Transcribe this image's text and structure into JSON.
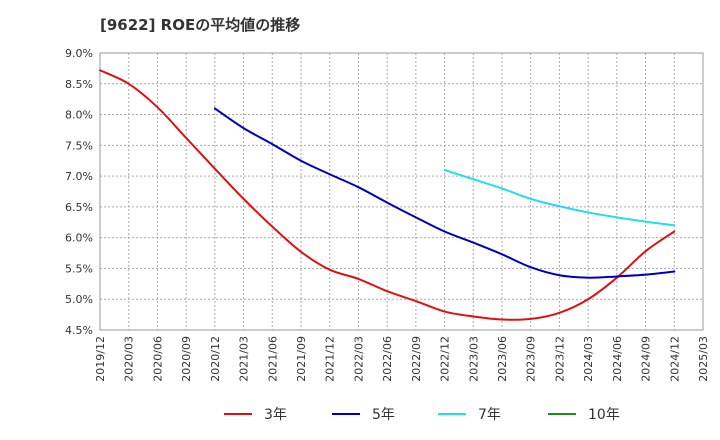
{
  "chart_data": {
    "type": "line",
    "title": "[9622]  ROEの平均値の推移",
    "xlabel": "",
    "ylabel": "",
    "ylim": [
      4.5,
      9.0
    ],
    "yticks": [
      4.5,
      5.0,
      5.5,
      6.0,
      6.5,
      7.0,
      7.5,
      8.0,
      8.5,
      9.0
    ],
    "ytick_labels": [
      "4.5%",
      "5.0%",
      "5.5%",
      "6.0%",
      "6.5%",
      "7.0%",
      "7.5%",
      "8.0%",
      "8.5%",
      "9.0%"
    ],
    "categories": [
      "2019/12",
      "2020/03",
      "2020/06",
      "2020/09",
      "2020/12",
      "2021/03",
      "2021/06",
      "2021/09",
      "2021/12",
      "2022/03",
      "2022/06",
      "2022/09",
      "2022/12",
      "2023/03",
      "2023/06",
      "2023/09",
      "2023/12",
      "2024/03",
      "2024/06",
      "2024/09",
      "2024/12",
      "2025/03"
    ],
    "grid": true,
    "legend_position": "bottom",
    "series": [
      {
        "name": "3年",
        "color": "#dd1111",
        "values": [
          8.72,
          8.5,
          8.12,
          7.62,
          7.12,
          6.63,
          6.18,
          5.77,
          5.48,
          5.33,
          5.13,
          4.97,
          4.8,
          4.72,
          4.67,
          4.68,
          4.78,
          5.0,
          5.35,
          5.78,
          6.1,
          null
        ]
      },
      {
        "name": "5年",
        "color": "#0000bb",
        "values": [
          null,
          null,
          null,
          null,
          8.1,
          7.78,
          7.52,
          7.25,
          7.03,
          6.82,
          6.57,
          6.33,
          6.1,
          5.92,
          5.73,
          5.52,
          5.39,
          5.35,
          5.37,
          5.4,
          5.45,
          null
        ]
      },
      {
        "name": "7年",
        "color": "#22ddee",
        "values": [
          null,
          null,
          null,
          null,
          null,
          null,
          null,
          null,
          null,
          null,
          null,
          null,
          7.1,
          6.95,
          6.8,
          6.63,
          6.51,
          6.41,
          6.33,
          6.26,
          6.2,
          null
        ]
      },
      {
        "name": "10年",
        "color": "#228822",
        "values": [
          null,
          null,
          null,
          null,
          null,
          null,
          null,
          null,
          null,
          null,
          null,
          null,
          null,
          null,
          null,
          null,
          null,
          null,
          null,
          null,
          null,
          null
        ]
      }
    ]
  }
}
